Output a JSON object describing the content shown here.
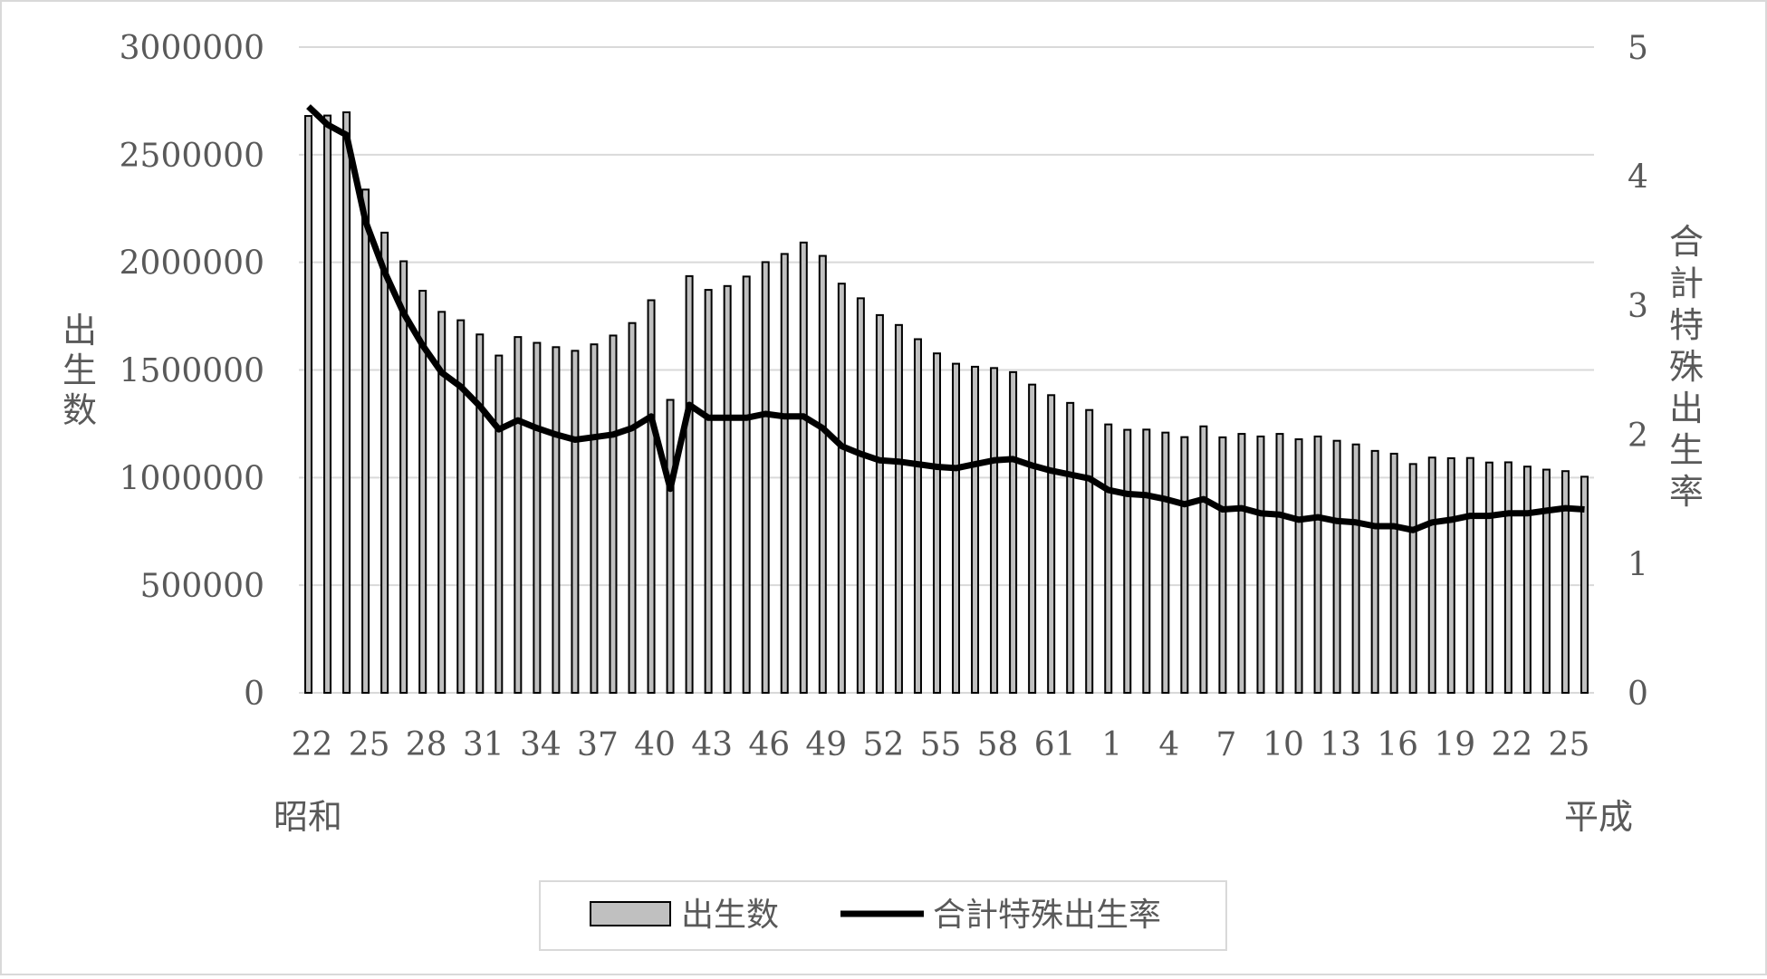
{
  "chart_data": {
    "type": "bar",
    "x_categories_shown": [
      "22",
      "25",
      "28",
      "31",
      "34",
      "37",
      "40",
      "43",
      "46",
      "49",
      "52",
      "55",
      "58",
      "61",
      "1",
      "4",
      "7",
      "10",
      "13",
      "16",
      "19",
      "22",
      "25"
    ],
    "era_labels": {
      "left": "昭和",
      "right": "平成"
    },
    "y_left": {
      "label": "出生数",
      "ticks": [
        "0",
        "500000",
        "1000000",
        "1500000",
        "2000000",
        "2500000",
        "3000000"
      ],
      "ylim": [
        0,
        3000000
      ]
    },
    "y_right": {
      "label": "合計特殊出生率",
      "ticks": [
        "0",
        "1",
        "2",
        "3",
        "4",
        "5"
      ],
      "ylim": [
        0,
        5
      ]
    },
    "series": [
      {
        "name": "出生数",
        "kind": "bar",
        "color": "#c0c0c0",
        "values": [
          2680000,
          2682000,
          2697000,
          2338000,
          2138000,
          2005000,
          1868000,
          1770000,
          1731000,
          1665000,
          1567000,
          1653000,
          1626000,
          1606000,
          1589000,
          1619000,
          1660000,
          1718000,
          1824000,
          1361000,
          1936000,
          1872000,
          1890000,
          1934000,
          2001000,
          2039000,
          2092000,
          2030000,
          1901000,
          1833000,
          1755000,
          1709000,
          1643000,
          1577000,
          1529000,
          1515000,
          1509000,
          1490000,
          1432000,
          1383000,
          1347000,
          1314000,
          1247000,
          1222000,
          1223000,
          1209000,
          1188000,
          1238000,
          1187000,
          1203000,
          1191000,
          1203000,
          1178000,
          1191000,
          1171000,
          1154000,
          1124000,
          1111000,
          1063000,
          1093000,
          1090000,
          1091000,
          1070000,
          1071000,
          1051000,
          1037000,
          1030000,
          1004000
        ]
      },
      {
        "name": "合計特殊出生率",
        "kind": "line",
        "color": "#000000",
        "values": [
          4.54,
          4.4,
          4.32,
          3.65,
          3.26,
          2.94,
          2.69,
          2.48,
          2.37,
          2.22,
          2.04,
          2.11,
          2.05,
          2.0,
          1.96,
          1.98,
          2.0,
          2.05,
          2.14,
          1.58,
          2.23,
          2.13,
          2.13,
          2.13,
          2.16,
          2.14,
          2.14,
          2.05,
          1.91,
          1.85,
          1.8,
          1.79,
          1.77,
          1.75,
          1.74,
          1.77,
          1.8,
          1.81,
          1.76,
          1.72,
          1.69,
          1.66,
          1.57,
          1.54,
          1.53,
          1.5,
          1.46,
          1.5,
          1.42,
          1.43,
          1.39,
          1.38,
          1.34,
          1.36,
          1.33,
          1.32,
          1.29,
          1.29,
          1.26,
          1.32,
          1.34,
          1.37,
          1.37,
          1.39,
          1.39,
          1.41,
          1.43,
          1.42
        ]
      }
    ],
    "grid": true,
    "legend_position": "bottom"
  },
  "legend": {
    "bar_label": "出生数",
    "line_label": "合計特殊出生率"
  },
  "colors": {
    "bar_fill": "#c0c0c0",
    "bar_stroke": "#000000",
    "line": "#000000",
    "grid": "#d9d9d9",
    "text": "#595959",
    "border": "#d9d9d9"
  }
}
